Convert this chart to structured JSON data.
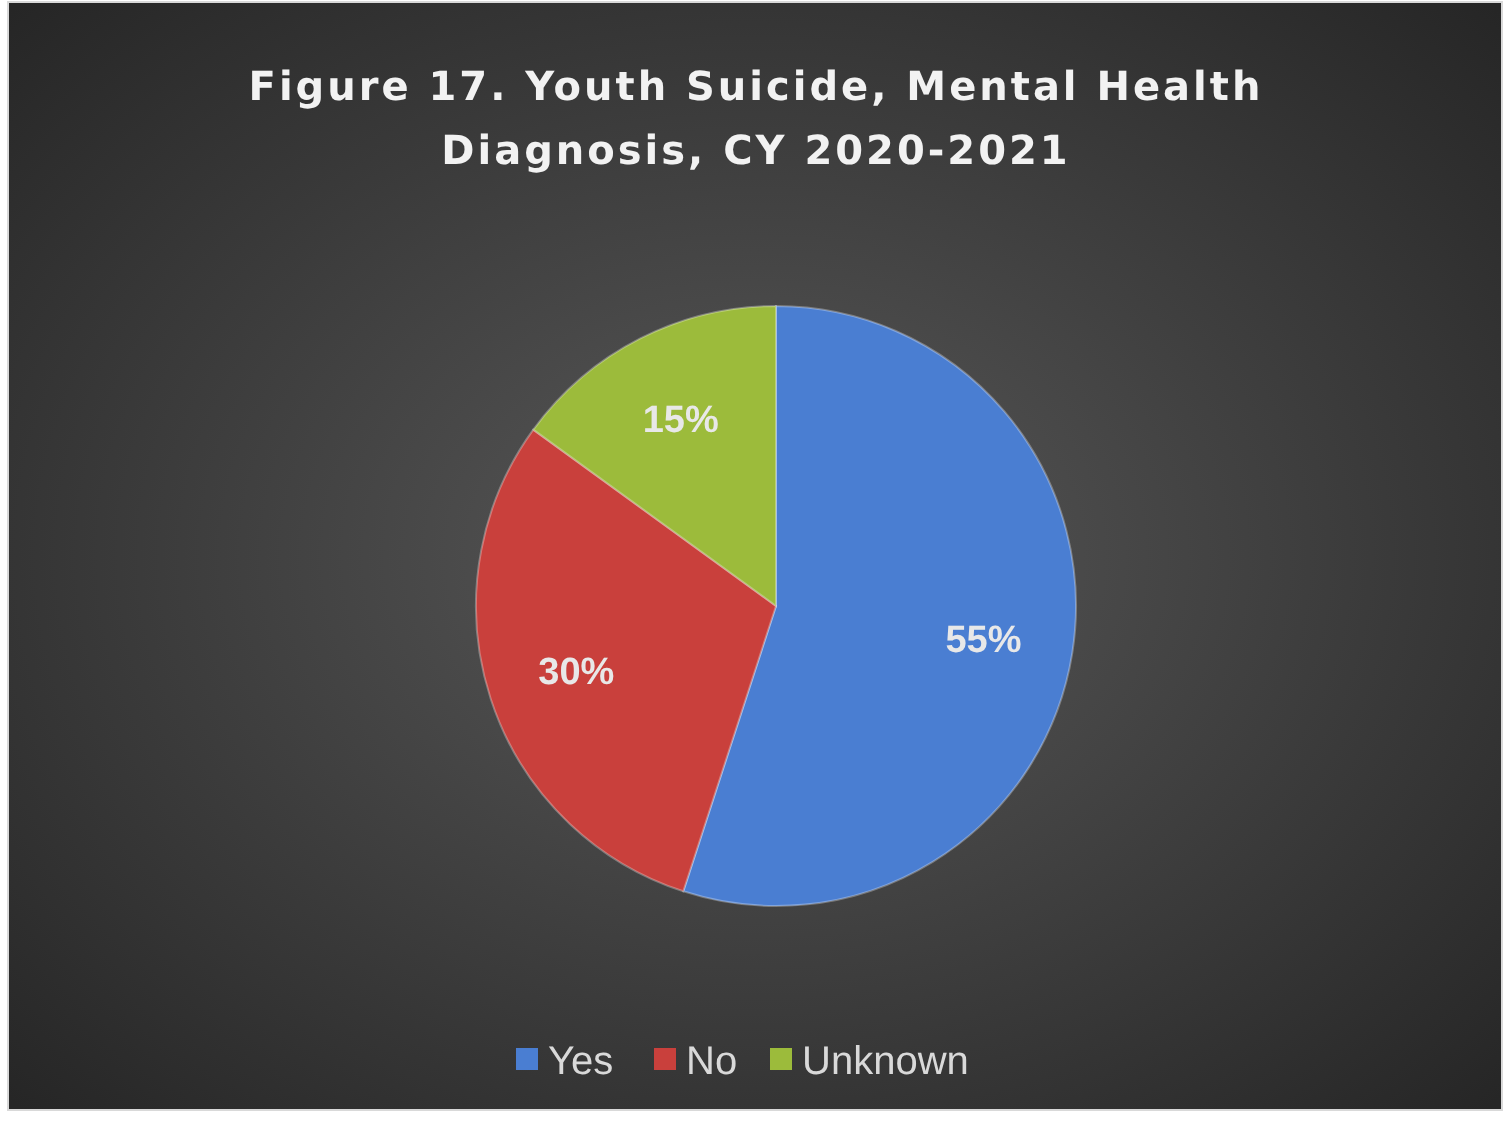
{
  "chart_data": {
    "type": "pie",
    "title": "Figure 17. Youth Suicide, Mental Health Diagnosis, CY 2020-2021",
    "categories": [
      "Yes",
      "No",
      "Unknown"
    ],
    "values": [
      55,
      30,
      15
    ],
    "colors": [
      "#4a7ed2",
      "#c9403c",
      "#9cbb3b"
    ],
    "value_labels": [
      "55%",
      "30%",
      "15%"
    ],
    "legend": "bottom"
  }
}
